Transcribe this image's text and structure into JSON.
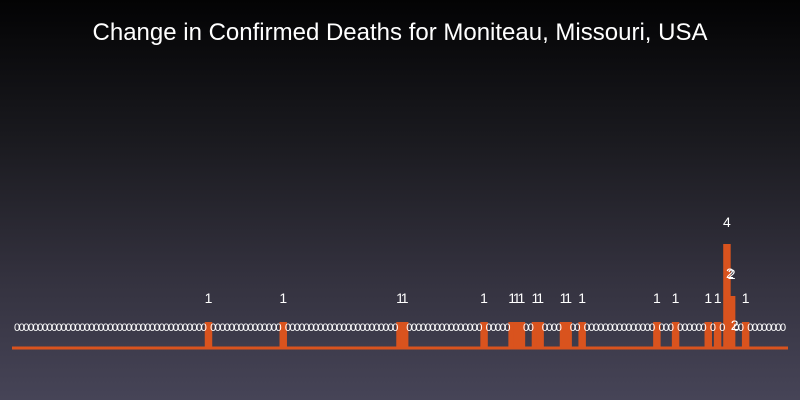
{
  "chart_data": {
    "type": "bar",
    "title": "Change in Confirmed Deaths for Moniteau, Missouri, USA",
    "xlabel": "",
    "ylabel": "",
    "ylim": [
      0,
      4
    ],
    "bar_color": "#d9531e",
    "background_top": "#030304",
    "background_bottom": "#464457",
    "categories_count": 161,
    "values": [
      0,
      0,
      0,
      0,
      0,
      0,
      0,
      0,
      0,
      0,
      0,
      0,
      0,
      0,
      0,
      0,
      0,
      0,
      0,
      0,
      0,
      0,
      0,
      0,
      0,
      0,
      0,
      0,
      0,
      0,
      0,
      0,
      0,
      0,
      0,
      0,
      0,
      0,
      0,
      0,
      0,
      1,
      0,
      0,
      0,
      0,
      0,
      0,
      0,
      0,
      0,
      0,
      0,
      0,
      0,
      0,
      0,
      1,
      0,
      0,
      0,
      0,
      0,
      0,
      0,
      0,
      0,
      0,
      0,
      0,
      0,
      0,
      0,
      0,
      0,
      0,
      0,
      0,
      0,
      0,
      0,
      0,
      1,
      1,
      0,
      0,
      0,
      0,
      0,
      0,
      0,
      0,
      0,
      0,
      0,
      0,
      0,
      0,
      0,
      0,
      1,
      0,
      0,
      0,
      0,
      0,
      1,
      1,
      1,
      0,
      0,
      1,
      1,
      0,
      0,
      0,
      0,
      1,
      1,
      0,
      0,
      1,
      0,
      0,
      0,
      0,
      0,
      0,
      0,
      0,
      0,
      0,
      0,
      0,
      0,
      0,
      0,
      1,
      0,
      0,
      0,
      1,
      0,
      0,
      0,
      0,
      0,
      0,
      1,
      0,
      1,
      0,
      4,
      2,
      0,
      0,
      1,
      0,
      0,
      0,
      0,
      0,
      0,
      0,
      0
    ]
  }
}
